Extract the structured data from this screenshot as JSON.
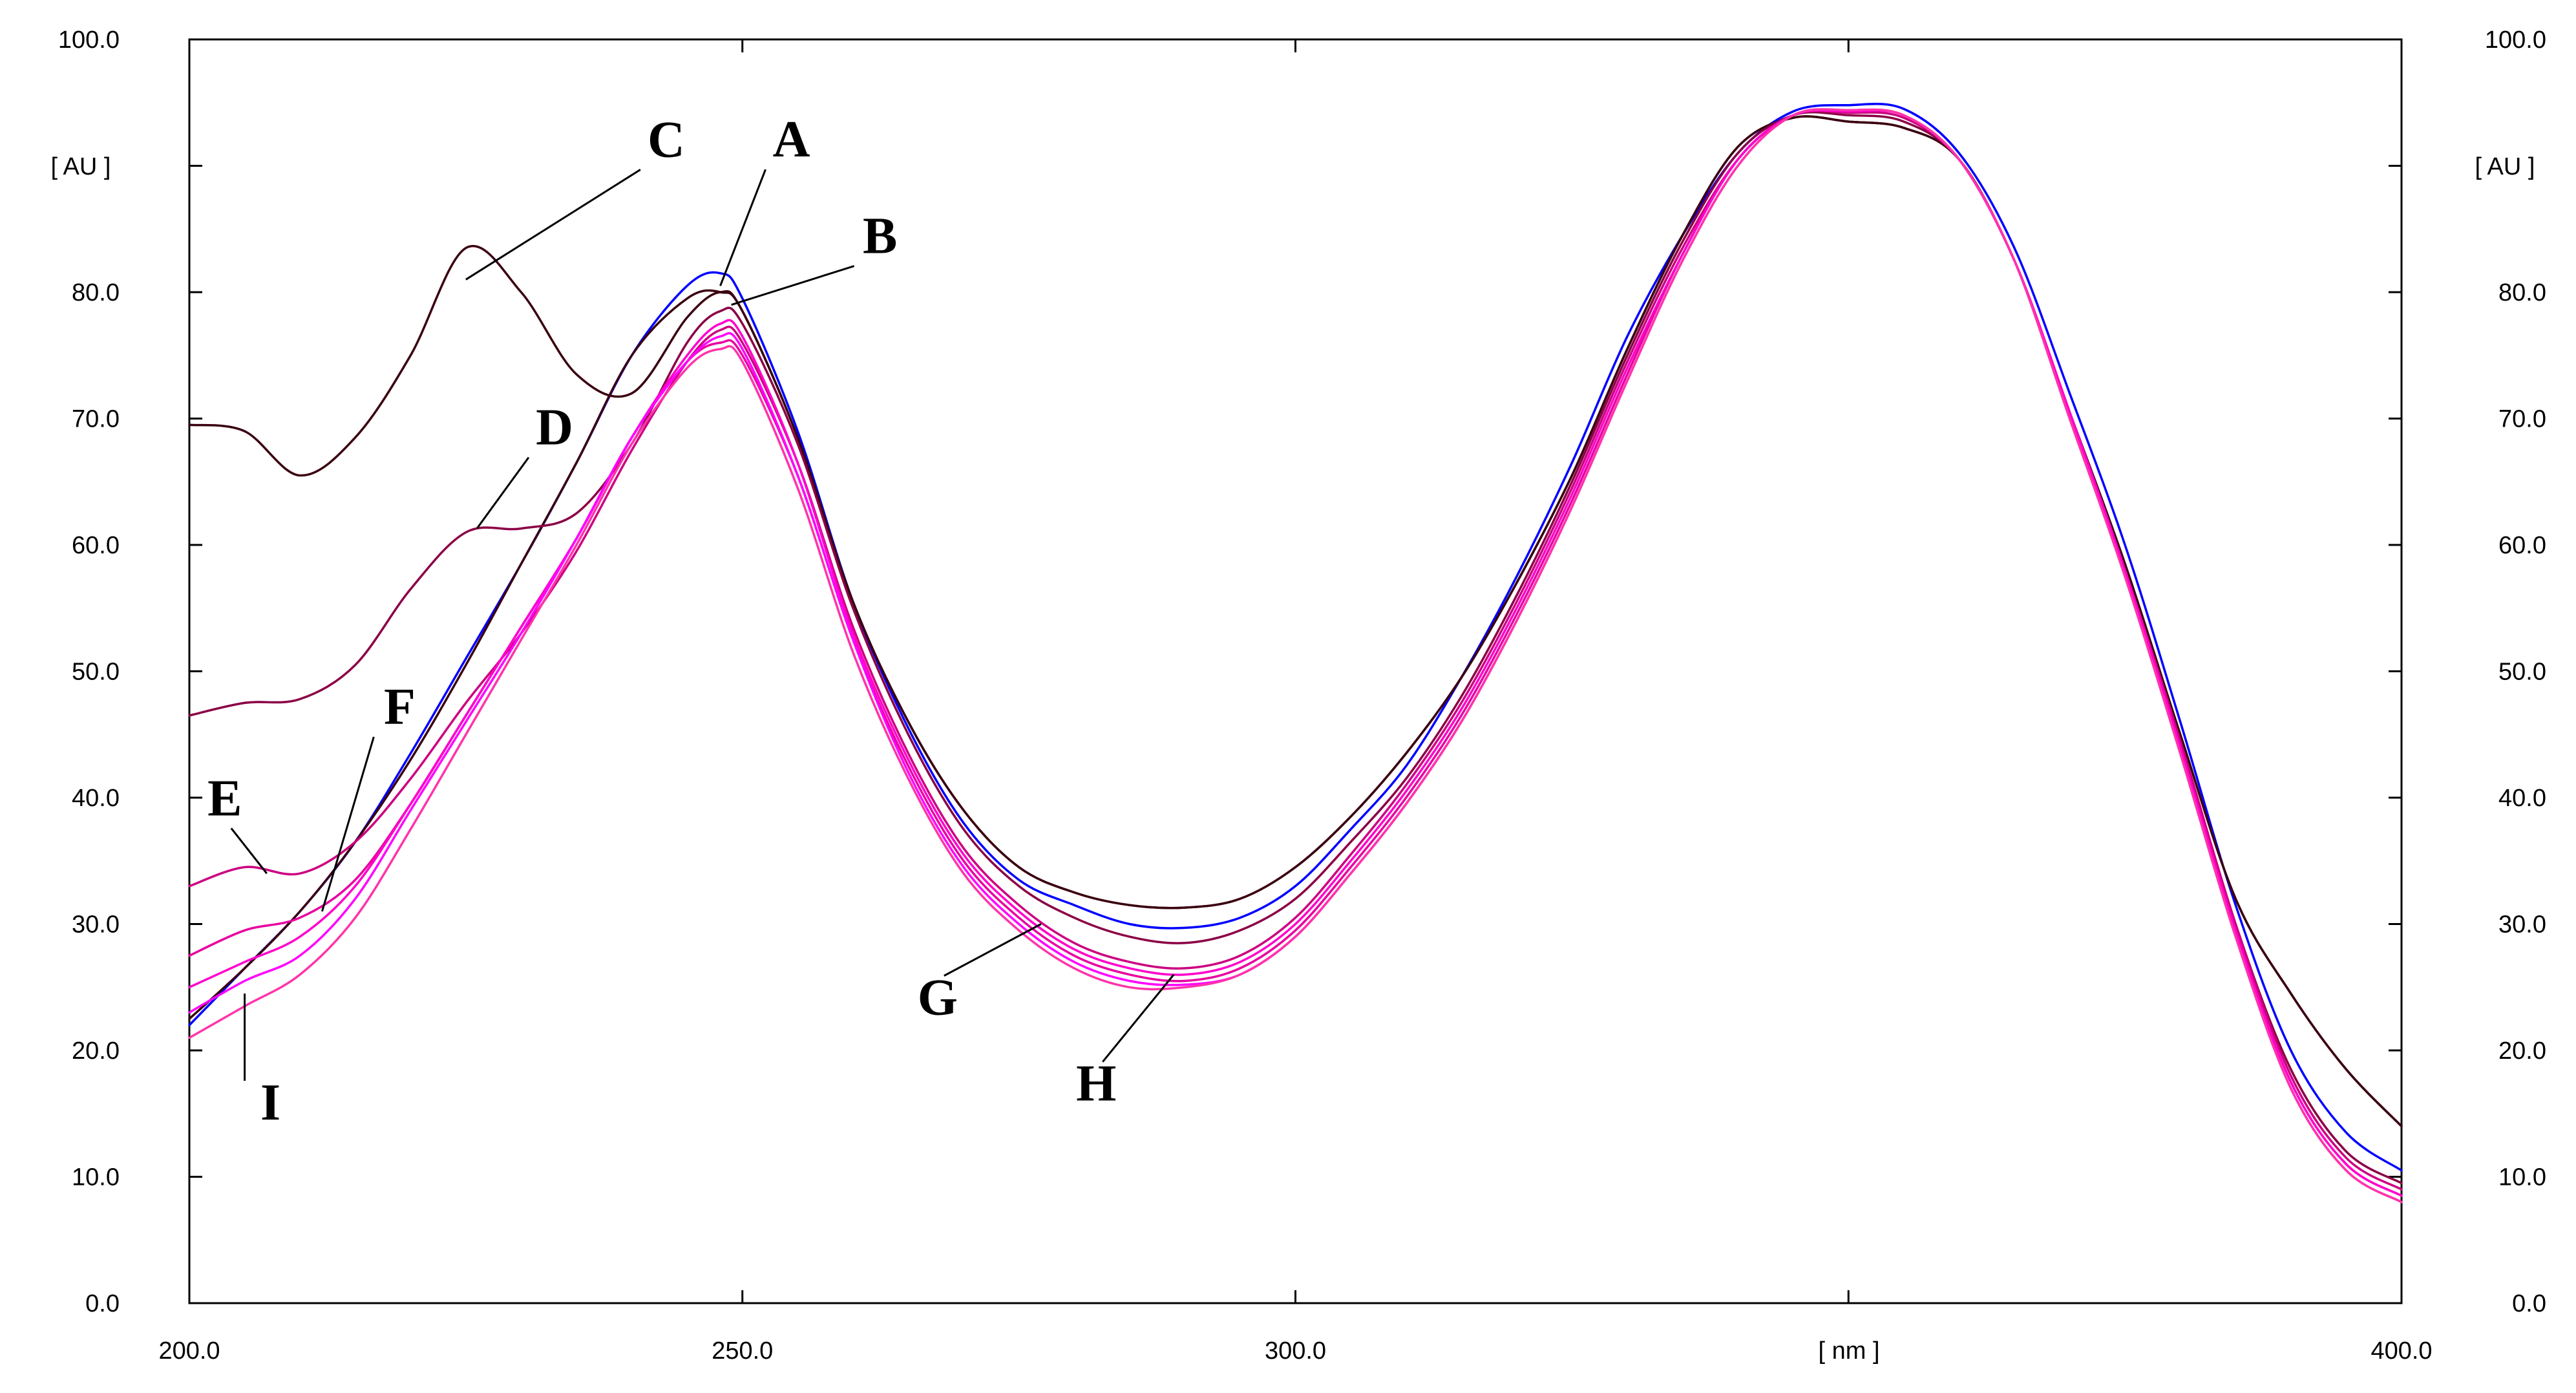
{
  "chart_data": {
    "type": "line",
    "title": "",
    "xlabel": "[ nm ]",
    "ylabel": "[ AU ]",
    "xlim": [
      200.0,
      400.0
    ],
    "ylim": [
      0.0,
      100.0
    ],
    "x_ticks": [
      "200.0",
      "250.0",
      "300.0",
      "400.0"
    ],
    "y_ticks": [
      "0.0",
      "10.0",
      "20.0",
      "30.0",
      "40.0",
      "50.0",
      "60.0",
      "70.0",
      "80.0",
      "100.0"
    ],
    "grid": false,
    "legend": "none",
    "x": [
      200,
      205,
      210,
      215,
      220,
      225,
      230,
      235,
      240,
      245,
      248,
      250,
      255,
      260,
      265,
      270,
      275,
      280,
      285,
      290,
      295,
      300,
      305,
      310,
      315,
      320,
      325,
      330,
      335,
      340,
      345,
      350,
      355,
      360,
      365,
      370,
      375,
      380,
      385,
      390,
      395,
      400
    ],
    "series": [
      {
        "color": "#0000ff",
        "values": [
          22.0,
          26.5,
          31.0,
          36.5,
          43.5,
          51.0,
          58.5,
          66.5,
          75.0,
          80.5,
          81.5,
          79.5,
          69.0,
          55.5,
          45.5,
          38.0,
          33.5,
          31.5,
          30.0,
          29.7,
          30.5,
          33.0,
          37.5,
          42.5,
          49.5,
          57.5,
          66.5,
          76.5,
          84.5,
          91.0,
          94.3,
          94.8,
          94.5,
          91.0,
          83.5,
          72.0,
          60.0,
          46.0,
          31.5,
          20.0,
          13.5,
          10.5
        ]
      },
      {
        "color": "#3a0010",
        "values": [
          22.5,
          26.5,
          31.0,
          36.5,
          43.0,
          50.5,
          58.5,
          66.5,
          75.0,
          79.5,
          80.0,
          78.5,
          68.5,
          55.5,
          46.0,
          39.0,
          34.5,
          32.5,
          31.5,
          31.3,
          32.0,
          34.5,
          38.5,
          43.5,
          49.5,
          57.0,
          65.5,
          75.5,
          84.5,
          91.5,
          93.8,
          93.5,
          93.0,
          90.5,
          82.5,
          70.5,
          58.5,
          45.0,
          32.0,
          24.5,
          18.5,
          14.0
        ]
      },
      {
        "color": "#3a0010",
        "values": [
          69.5,
          69.0,
          65.5,
          68.5,
          75.0,
          83.5,
          80.0,
          73.5,
          72.0,
          78.0,
          80.0,
          78.5,
          68.5,
          55.5,
          46.0,
          39.0,
          34.5,
          32.5,
          31.5,
          31.3,
          32.0,
          34.5,
          38.5,
          43.5,
          49.5,
          57.0,
          65.5,
          75.5,
          84.5,
          91.5,
          93.8,
          93.5,
          93.0,
          90.5,
          82.5,
          70.5,
          58.5,
          45.0,
          32.0,
          24.5,
          18.5,
          14.0
        ]
      },
      {
        "color": "#8b0045",
        "values": [
          46.5,
          47.5,
          47.8,
          50.5,
          56.5,
          61.0,
          61.3,
          62.5,
          68.0,
          76.0,
          78.5,
          77.5,
          68.0,
          55.0,
          45.0,
          37.5,
          33.0,
          30.5,
          29.0,
          28.5,
          29.5,
          32.0,
          36.5,
          41.5,
          48.0,
          56.0,
          65.0,
          75.0,
          84.0,
          91.0,
          94.0,
          94.0,
          93.5,
          90.5,
          82.5,
          70.5,
          58.0,
          44.5,
          30.0,
          18.5,
          12.0,
          9.5
        ]
      },
      {
        "color": "#cc0080",
        "values": [
          33.0,
          34.5,
          34.0,
          36.5,
          41.5,
          47.5,
          53.0,
          59.5,
          67.5,
          74.5,
          77.0,
          76.0,
          66.5,
          53.5,
          43.5,
          36.0,
          31.5,
          28.5,
          27.0,
          26.5,
          27.5,
          30.5,
          35.5,
          41.0,
          47.5,
          55.5,
          64.5,
          74.5,
          83.5,
          90.5,
          94.0,
          94.2,
          93.8,
          90.5,
          82.5,
          70.5,
          58.0,
          44.5,
          30.0,
          18.0,
          11.5,
          9.0
        ]
      },
      {
        "color": "#e800a0",
        "values": [
          27.5,
          29.5,
          30.5,
          33.5,
          39.5,
          46.5,
          53.5,
          60.5,
          68.5,
          74.5,
          76.0,
          75.0,
          65.5,
          52.5,
          42.5,
          35.0,
          30.5,
          27.5,
          26.0,
          25.5,
          26.5,
          29.5,
          34.5,
          40.0,
          46.5,
          54.5,
          63.5,
          73.5,
          83.0,
          90.5,
          94.0,
          94.3,
          94.0,
          90.5,
          82.5,
          70.5,
          58.0,
          44.0,
          29.5,
          17.5,
          11.0,
          8.5
        ]
      },
      {
        "color": "#ff00cc",
        "values": [
          25.0,
          27.0,
          29.0,
          33.0,
          39.5,
          46.5,
          53.5,
          60.5,
          68.5,
          75.0,
          77.5,
          76.5,
          66.5,
          53.0,
          43.0,
          35.5,
          31.0,
          28.0,
          26.5,
          26.0,
          27.0,
          30.0,
          35.0,
          40.5,
          47.0,
          55.0,
          64.0,
          74.0,
          83.0,
          90.5,
          94.0,
          94.3,
          94.0,
          90.5,
          82.5,
          70.5,
          58.0,
          44.0,
          29.5,
          17.5,
          11.0,
          8.5
        ]
      },
      {
        "color": "#ff00ff",
        "values": [
          23.0,
          25.5,
          27.5,
          32.0,
          39.0,
          46.0,
          53.0,
          60.5,
          68.5,
          74.5,
          76.5,
          75.5,
          65.5,
          52.5,
          42.0,
          34.5,
          30.0,
          27.0,
          25.5,
          25.2,
          26.0,
          29.0,
          34.0,
          39.5,
          46.0,
          54.0,
          63.0,
          73.0,
          82.5,
          90.0,
          94.0,
          94.4,
          94.0,
          90.5,
          82.5,
          70.0,
          57.5,
          43.5,
          29.0,
          17.0,
          10.5,
          8.0
        ]
      },
      {
        "color": "#ff33aa",
        "values": [
          21.0,
          23.5,
          26.0,
          30.5,
          37.5,
          45.0,
          52.5,
          60.0,
          68.0,
          74.0,
          75.5,
          74.5,
          64.5,
          51.5,
          41.5,
          34.0,
          29.5,
          26.5,
          25.0,
          25.0,
          26.0,
          29.0,
          34.0,
          39.5,
          46.0,
          54.0,
          63.0,
          73.0,
          82.5,
          90.0,
          94.0,
          94.4,
          94.0,
          90.5,
          82.5,
          70.0,
          57.5,
          43.5,
          29.0,
          17.0,
          10.5,
          8.0
        ]
      }
    ],
    "annotations": [
      {
        "text": "A",
        "x": 248,
        "y": 80.5
      },
      {
        "text": "B",
        "x": 249,
        "y": 79.0
      },
      {
        "text": "C",
        "x": 225,
        "y": 81.0
      },
      {
        "text": "D",
        "x": 226,
        "y": 61.3
      },
      {
        "text": "E",
        "x": 207,
        "y": 34.0
      },
      {
        "text": "F",
        "x": 212,
        "y": 31.0
      },
      {
        "text": "G",
        "x": 277,
        "y": 30.0
      },
      {
        "text": "H",
        "x": 289,
        "y": 26.0
      },
      {
        "text": "I",
        "x": 205,
        "y": 24.5
      }
    ]
  }
}
